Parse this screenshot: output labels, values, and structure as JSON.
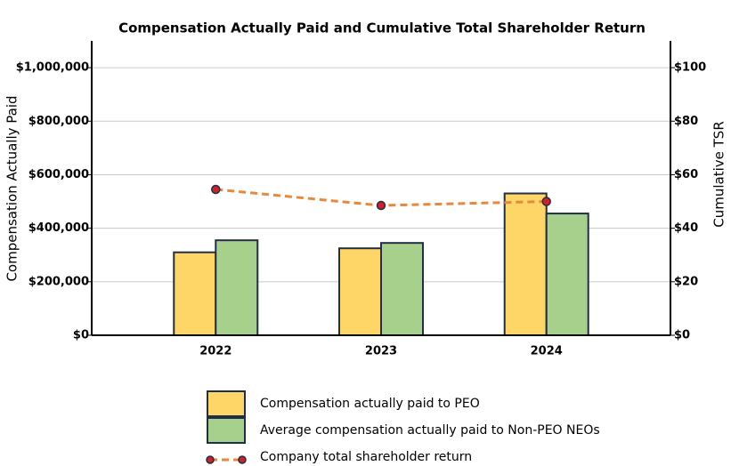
{
  "chart_data": {
    "type": "bar",
    "title": "Compensation Actually Paid and Cumulative Total Shareholder Return",
    "ylabel": "Compensation Actually Paid",
    "y2label": "Cumulative TSR",
    "categories": [
      "2022",
      "2023",
      "2024"
    ],
    "series": [
      {
        "name": "Compensation actually paid to PEO",
        "type": "bar",
        "color": "#fdd667",
        "values": [
          310000,
          325000,
          530000
        ]
      },
      {
        "name": "Average compensation actually paid to Non-PEO NEOs",
        "type": "bar",
        "color": "#a8d08d",
        "values": [
          355000,
          345000,
          455000
        ]
      },
      {
        "name": "Company total shareholder return",
        "type": "line",
        "axis": "y2",
        "color": "#e8883a",
        "marker_color": "#d0202a",
        "values": [
          54.5,
          48.5,
          50
        ]
      }
    ],
    "ylim": [
      0,
      1100000
    ],
    "yticks": [
      {
        "value": 0,
        "label": "$0"
      },
      {
        "value": 200000,
        "label": "$200,000"
      },
      {
        "value": 400000,
        "label": "$400,000"
      },
      {
        "value": 600000,
        "label": "$600,000"
      },
      {
        "value": 800000,
        "label": "$800,000"
      },
      {
        "value": 1000000,
        "label": "$1,000,000"
      }
    ],
    "y2lim": [
      0,
      110
    ],
    "y2ticks": [
      {
        "value": 0,
        "label": "$0"
      },
      {
        "value": 20,
        "label": "$20"
      },
      {
        "value": 40,
        "label": "$40"
      },
      {
        "value": 60,
        "label": "$60"
      },
      {
        "value": 80,
        "label": "$80"
      },
      {
        "value": 100,
        "label": "$100"
      }
    ],
    "grid": true
  }
}
